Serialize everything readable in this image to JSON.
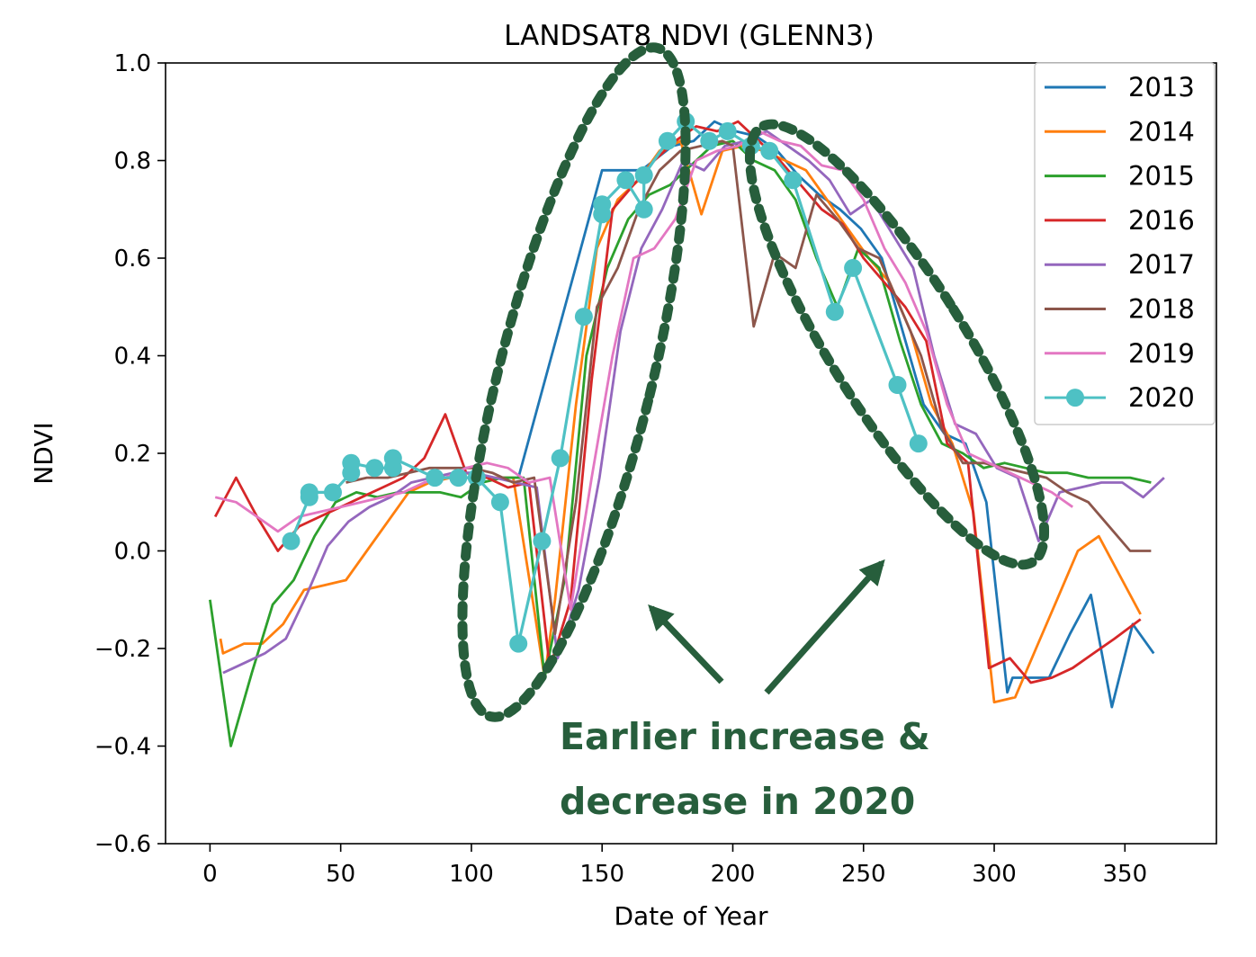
{
  "chart_data": {
    "type": "line",
    "title": "LANDSAT8 NDVI (GLENN3)",
    "xlabel": "Date of Year",
    "ylabel": "NDVI",
    "xlim": [
      -17,
      385
    ],
    "ylim": [
      -0.6,
      1.0
    ],
    "xticks": [
      0,
      50,
      100,
      150,
      200,
      250,
      300,
      350
    ],
    "yticks": [
      -0.6,
      -0.4,
      -0.2,
      0.0,
      0.2,
      0.4,
      0.6,
      0.8,
      1.0
    ],
    "xtick_labels": [
      "0",
      "50",
      "100",
      "150",
      "200",
      "250",
      "300",
      "350"
    ],
    "ytick_labels": [
      "−0.6",
      "−0.4",
      "−0.2",
      "0.0",
      "0.2",
      "0.4",
      "0.6",
      "0.8",
      "1.0"
    ],
    "grid": false,
    "legend_position": "top-right",
    "series": [
      {
        "name": "2013",
        "color": "#1f77b4",
        "markers": false,
        "x": [
          110,
          118,
          150,
          155,
          165,
          177,
          185,
          193,
          201,
          209,
          217,
          225,
          233,
          241,
          249,
          257,
          265,
          273,
          281,
          289,
          297,
          305,
          307,
          313,
          321,
          329,
          337,
          345,
          353,
          361
        ],
        "y": [
          0.15,
          0.15,
          0.78,
          0.78,
          0.78,
          0.83,
          0.84,
          0.88,
          0.86,
          0.85,
          0.82,
          0.77,
          0.73,
          0.7,
          0.66,
          0.6,
          0.45,
          0.3,
          0.24,
          0.22,
          0.1,
          -0.29,
          -0.26,
          -0.26,
          -0.26,
          -0.17,
          -0.09,
          -0.32,
          -0.15,
          -0.21
        ]
      },
      {
        "name": "2014",
        "color": "#ff7f0e",
        "markers": false,
        "x": [
          4,
          5,
          13,
          20,
          28,
          36,
          44,
          52,
          60,
          68,
          76,
          84,
          92,
          100,
          108,
          116,
          124,
          128,
          132,
          140,
          148,
          156,
          164,
          172,
          180,
          188,
          196,
          204,
          212,
          220,
          228,
          236,
          244,
          252,
          260,
          268,
          276,
          284,
          292,
          300,
          308,
          316,
          324,
          332,
          340,
          348,
          356
        ],
        "y": [
          -0.18,
          -0.21,
          -0.19,
          -0.19,
          -0.15,
          -0.08,
          -0.07,
          -0.06,
          0.0,
          0.06,
          0.12,
          0.14,
          0.15,
          0.15,
          0.15,
          0.15,
          -0.12,
          -0.26,
          -0.1,
          0.3,
          0.62,
          0.72,
          0.76,
          0.82,
          0.84,
          0.69,
          0.82,
          0.83,
          0.82,
          0.8,
          0.78,
          0.72,
          0.66,
          0.6,
          0.55,
          0.45,
          0.3,
          0.22,
          0.08,
          -0.31,
          -0.3,
          -0.2,
          -0.1,
          0.0,
          0.03,
          -0.05,
          -0.13
        ]
      },
      {
        "name": "2015",
        "color": "#2ca02c",
        "markers": false,
        "x": [
          0,
          8,
          16,
          24,
          32,
          40,
          48,
          56,
          64,
          72,
          80,
          88,
          96,
          104,
          112,
          120,
          128,
          136,
          144,
          152,
          160,
          168,
          176,
          184,
          192,
          200,
          208,
          216,
          224,
          232,
          240,
          248,
          256,
          264,
          272,
          280,
          288,
          296,
          304,
          312,
          320,
          328,
          336,
          344,
          352,
          360
        ],
        "y": [
          -0.1,
          -0.4,
          -0.25,
          -0.11,
          -0.06,
          0.03,
          0.1,
          0.12,
          0.11,
          0.12,
          0.12,
          0.12,
          0.11,
          0.14,
          0.15,
          0.15,
          -0.26,
          -0.05,
          0.4,
          0.58,
          0.68,
          0.73,
          0.75,
          0.79,
          0.83,
          0.84,
          0.8,
          0.78,
          0.72,
          0.6,
          0.5,
          0.62,
          0.58,
          0.43,
          0.3,
          0.22,
          0.2,
          0.17,
          0.18,
          0.17,
          0.16,
          0.16,
          0.15,
          0.15,
          0.15,
          0.14
        ]
      },
      {
        "name": "2016",
        "color": "#d62728",
        "markers": false,
        "x": [
          2,
          10,
          18,
          26,
          34,
          42,
          50,
          58,
          66,
          74,
          82,
          90,
          98,
          106,
          114,
          122,
          130,
          138,
          146,
          154,
          162,
          170,
          178,
          186,
          194,
          202,
          210,
          218,
          226,
          234,
          242,
          250,
          258,
          266,
          274,
          282,
          290,
          298,
          306,
          314,
          322,
          330,
          338,
          346,
          356
        ],
        "y": [
          0.07,
          0.15,
          0.07,
          0.0,
          0.05,
          0.07,
          0.09,
          0.11,
          0.13,
          0.15,
          0.19,
          0.28,
          0.16,
          0.15,
          0.13,
          0.14,
          -0.24,
          -0.1,
          0.35,
          0.7,
          0.75,
          0.8,
          0.84,
          0.87,
          0.86,
          0.88,
          0.84,
          0.8,
          0.75,
          0.7,
          0.67,
          0.6,
          0.55,
          0.5,
          0.43,
          0.22,
          0.18,
          -0.24,
          -0.22,
          -0.27,
          -0.26,
          -0.24,
          -0.21,
          -0.18,
          -0.14
        ]
      },
      {
        "name": "2017",
        "color": "#9467bd",
        "markers": false,
        "x": [
          5,
          13,
          21,
          29,
          37,
          45,
          53,
          61,
          69,
          77,
          85,
          93,
          101,
          109,
          117,
          125,
          133,
          141,
          149,
          157,
          165,
          173,
          181,
          189,
          197,
          205,
          213,
          221,
          229,
          237,
          245,
          253,
          261,
          269,
          277,
          285,
          293,
          301,
          309,
          317,
          325,
          333,
          341,
          349,
          357,
          365
        ],
        "y": [
          -0.25,
          -0.23,
          -0.21,
          -0.18,
          -0.09,
          0.01,
          0.06,
          0.09,
          0.11,
          0.14,
          0.15,
          0.16,
          0.16,
          0.15,
          0.14,
          0.13,
          -0.22,
          -0.08,
          0.15,
          0.45,
          0.62,
          0.7,
          0.8,
          0.78,
          0.83,
          0.84,
          0.86,
          0.83,
          0.8,
          0.76,
          0.69,
          0.72,
          0.65,
          0.58,
          0.4,
          0.26,
          0.24,
          0.17,
          0.15,
          0.02,
          0.12,
          0.13,
          0.14,
          0.14,
          0.11,
          0.15
        ]
      },
      {
        "name": "2018",
        "color": "#8c564b",
        "markers": false,
        "x": [
          52,
          60,
          68,
          76,
          84,
          92,
          100,
          108,
          116,
          124,
          132,
          140,
          148,
          156,
          164,
          172,
          180,
          188,
          196,
          200,
          208,
          216,
          224,
          232,
          240,
          248,
          256,
          264,
          272,
          280,
          288,
          296,
          304,
          312,
          320,
          328,
          336,
          344,
          352,
          360
        ],
        "y": [
          0.14,
          0.15,
          0.15,
          0.16,
          0.17,
          0.17,
          0.17,
          0.16,
          0.14,
          0.15,
          -0.17,
          0.1,
          0.5,
          0.58,
          0.7,
          0.78,
          0.82,
          0.83,
          0.84,
          0.83,
          0.46,
          0.61,
          0.58,
          0.73,
          0.68,
          0.62,
          0.6,
          0.5,
          0.4,
          0.25,
          0.18,
          0.18,
          0.17,
          0.16,
          0.15,
          0.12,
          0.1,
          0.05,
          0.0,
          0.0
        ]
      },
      {
        "name": "2019",
        "color": "#e377c2",
        "markers": false,
        "x": [
          2,
          10,
          18,
          26,
          34,
          42,
          50,
          58,
          66,
          74,
          82,
          90,
          98,
          106,
          114,
          122,
          130,
          138,
          146,
          154,
          162,
          170,
          178,
          186,
          194,
          202,
          210,
          218,
          226,
          234,
          242,
          250,
          258,
          266,
          274,
          282,
          290,
          298,
          306,
          314,
          322,
          330
        ],
        "y": [
          0.11,
          0.1,
          0.07,
          0.04,
          0.07,
          0.08,
          0.09,
          0.1,
          0.11,
          0.12,
          0.14,
          0.15,
          0.17,
          0.18,
          0.17,
          0.14,
          0.15,
          -0.12,
          0.15,
          0.4,
          0.6,
          0.62,
          0.68,
          0.8,
          0.82,
          0.83,
          0.86,
          0.84,
          0.83,
          0.79,
          0.78,
          0.72,
          0.62,
          0.55,
          0.45,
          0.3,
          0.2,
          0.18,
          0.16,
          0.14,
          0.12,
          0.09
        ]
      },
      {
        "name": "2020",
        "color": "#4ec1c4",
        "markers": true,
        "x": [
          31,
          38,
          38,
          47,
          54,
          54,
          63,
          70,
          70,
          86,
          95,
          102,
          111,
          118,
          127,
          134,
          143,
          150,
          150,
          159,
          166,
          166,
          175,
          182,
          191,
          198,
          207,
          214,
          223,
          239,
          246,
          263,
          271
        ],
        "y": [
          0.02,
          0.11,
          0.12,
          0.12,
          0.16,
          0.18,
          0.17,
          0.17,
          0.19,
          0.15,
          0.15,
          0.15,
          0.1,
          -0.19,
          0.02,
          0.19,
          0.48,
          0.69,
          0.71,
          0.76,
          0.7,
          0.77,
          0.84,
          0.88,
          0.84,
          0.86,
          0.83,
          0.82,
          0.76,
          0.49,
          0.58,
          0.34,
          0.22
        ]
      }
    ],
    "annotation": {
      "lines": [
        "Earlier increase &",
        "decrease in 2020"
      ],
      "color": "#275e3c"
    }
  }
}
